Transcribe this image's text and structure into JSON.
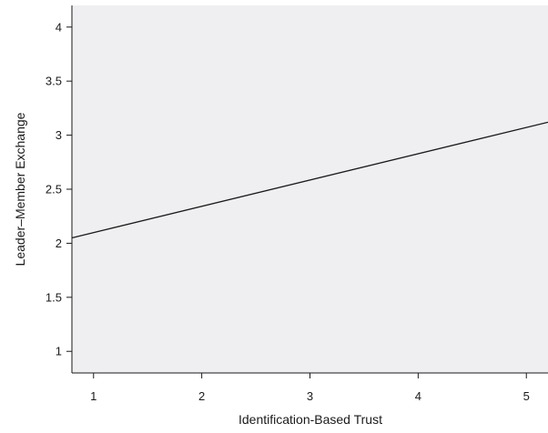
{
  "chart_data": {
    "type": "line",
    "title": "",
    "xlabel": "Identification-Based Trust",
    "ylabel": "Leader–Member Exchange",
    "xlim": [
      0.8,
      5.2
    ],
    "ylim": [
      0.8,
      4.2
    ],
    "x_ticks": [
      {
        "value": 1,
        "label": "1"
      },
      {
        "value": 2,
        "label": "2"
      },
      {
        "value": 3,
        "label": "3"
      },
      {
        "value": 4,
        "label": "4"
      },
      {
        "value": 5,
        "label": "5"
      }
    ],
    "y_ticks": [
      {
        "value": 1,
        "label": "1"
      },
      {
        "value": 1.5,
        "label": "1.5"
      },
      {
        "value": 2,
        "label": "2"
      },
      {
        "value": 2.5,
        "label": "2.5"
      },
      {
        "value": 3,
        "label": "3"
      },
      {
        "value": 3.5,
        "label": "3.5"
      },
      {
        "value": 4,
        "label": "4"
      }
    ],
    "series": [
      {
        "x": [
          0.8,
          5.2
        ],
        "y": [
          2.05,
          3.12
        ]
      }
    ],
    "grid": false,
    "legend": "none",
    "colors": {
      "plot_background": "#efeff1",
      "line": "#1a1a1a",
      "axis": "#1a1a1a"
    }
  }
}
